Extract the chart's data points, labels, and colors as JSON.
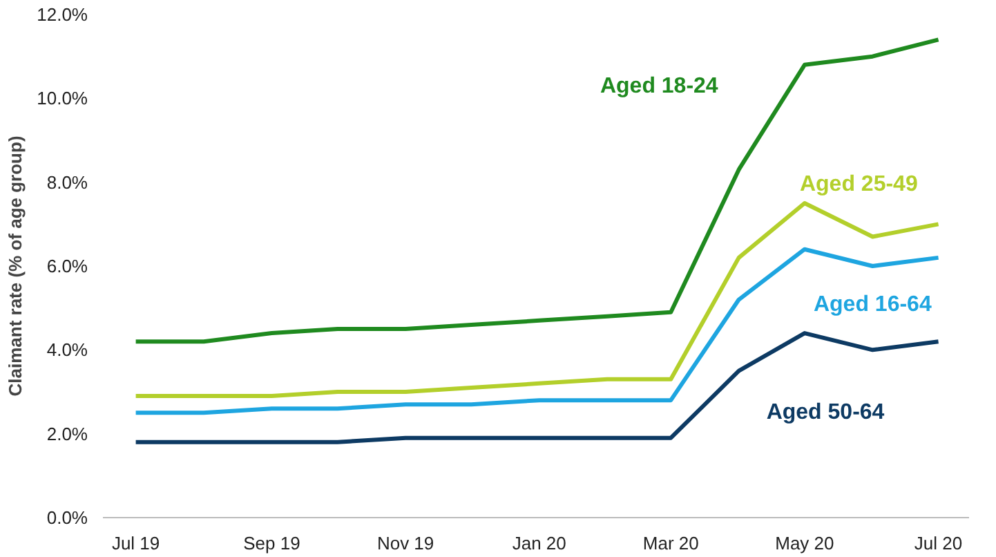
{
  "chart_data": {
    "type": "line",
    "ylabel": "Claimant rate (% of age group)",
    "x": [
      "2019-07",
      "2019-08",
      "2019-09",
      "2019-10",
      "2019-11",
      "2019-12",
      "2020-01",
      "2020-02",
      "2020-03",
      "2020-04",
      "2020-05",
      "2020-06",
      "2020-07"
    ],
    "series": [
      {
        "name": "Aged 18-24",
        "color": "#1f8a1f",
        "values": [
          4.2,
          4.2,
          4.4,
          4.5,
          4.5,
          4.6,
          4.7,
          4.8,
          4.9,
          8.3,
          10.8,
          11.0,
          11.4
        ]
      },
      {
        "name": "Aged 25-49",
        "color": "#b3cf2b",
        "values": [
          2.9,
          2.9,
          2.9,
          3.0,
          3.0,
          3.1,
          3.2,
          3.3,
          3.3,
          6.2,
          7.5,
          6.7,
          7.0
        ]
      },
      {
        "name": "Aged 16-64",
        "color": "#1ea5e0",
        "values": [
          2.5,
          2.5,
          2.6,
          2.6,
          2.7,
          2.7,
          2.8,
          2.8,
          2.8,
          5.2,
          6.4,
          6.0,
          6.2
        ]
      },
      {
        "name": "Aged 50-64",
        "color": "#0d3a63",
        "values": [
          1.8,
          1.8,
          1.8,
          1.8,
          1.9,
          1.9,
          1.9,
          1.9,
          1.9,
          3.5,
          4.4,
          4.0,
          4.2
        ]
      }
    ],
    "xlim": [
      "2019-06-16",
      "2020-07-15"
    ],
    "xticks": [
      {
        "value": "2019-07",
        "label": "Jul 19"
      },
      {
        "value": "2019-09",
        "label": "Sep 19"
      },
      {
        "value": "2019-11",
        "label": "Nov 19"
      },
      {
        "value": "2020-01",
        "label": "Jan 20"
      },
      {
        "value": "2020-03",
        "label": "Mar 20"
      },
      {
        "value": "2020-05",
        "label": "May 20"
      },
      {
        "value": "2020-07",
        "label": "Jul 20"
      }
    ],
    "ylim": [
      0,
      12
    ],
    "yticks": [
      {
        "value": 0,
        "label": "0.0%"
      },
      {
        "value": 2,
        "label": "2.0%"
      },
      {
        "value": 4,
        "label": "4.0%"
      },
      {
        "value": 6,
        "label": "6.0%"
      },
      {
        "value": 8,
        "label": "8.0%"
      },
      {
        "value": 10,
        "label": "10.0%"
      },
      {
        "value": 12,
        "label": "12.0%"
      }
    ],
    "grid": false,
    "marker": "none",
    "line_style": "solid"
  }
}
